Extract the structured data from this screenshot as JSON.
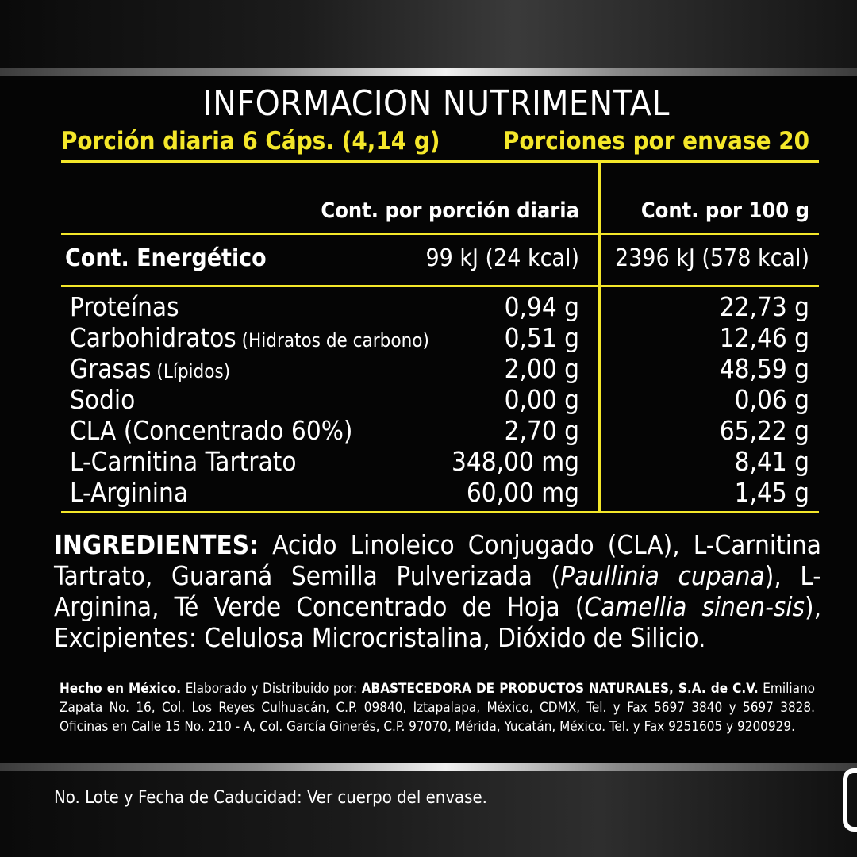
{
  "panel": {
    "title": "INFORMACION NUTRIMENTAL",
    "serving_size": "Porción diaria 6 Cáps. (4,14 g)",
    "servings_per_container": "Porciones por envase 20"
  },
  "table": {
    "header_per_serving": "Cont. por  porción diaria",
    "header_per_100g": "Cont. por 100 g",
    "energy": {
      "label": "Cont. Energético",
      "per_serving": "99 kJ (24 kcal)",
      "per_100g": "2396 kJ (578 kcal)"
    },
    "rows": [
      {
        "name": "Proteínas",
        "note": "",
        "per_serving": "0,94 g",
        "per_100g": "22,73 g"
      },
      {
        "name": "Carbohidratos",
        "note": " (Hidratos de carbono)",
        "per_serving": "0,51 g",
        "per_100g": "12,46 g"
      },
      {
        "name": "Grasas",
        "note": " (Lípidos)",
        "per_serving": "2,00 g",
        "per_100g": "48,59 g"
      },
      {
        "name": "Sodio",
        "note": "",
        "per_serving": "0,00 g",
        "per_100g": "0,06 g"
      },
      {
        "name": "CLA (Concentrado 60%)",
        "note": "",
        "per_serving": "2,70 g",
        "per_100g": "65,22 g"
      },
      {
        "name": "L-Carnitina Tartrato",
        "note": "",
        "per_serving": "348,00 mg",
        "per_100g": "8,41 g"
      },
      {
        "name": "L-Arginina",
        "note": "",
        "per_serving": "60,00 mg",
        "per_100g": "1,45 g"
      }
    ]
  },
  "ingredients": {
    "label": "INGREDIENTES:",
    "part1": " Acido Linoleico Conjugado (CLA), L-Carnitina Tartrato, Guaraná Semilla Pulverizada (",
    "sci1": "Paullinia cupana",
    "part2": "), L- Arginina, Té Verde Concentrado de Hoja (",
    "sci2": "Camellia sinen-sis",
    "part3": "), Excipientes: Celulosa Microcristalina, Dióxido de Silicio."
  },
  "manufacturer": {
    "made_in": "Hecho en México.",
    "distributed_by": " Elaborado y Distribuido por: ",
    "company": "ABASTECEDORA DE PRODUCTOS NATURALES, S.A. de C.V.",
    "address": " Emiliano Zapata No. 16, Col. Los Reyes Culhuacán, C.P. 09840, Iztapalapa, México, CDMX, Tel. y Fax  5697 3840 y 5697 3828. Oficinas en Calle 15 No. 210 - A, Col. García Ginerés, C.P. 97070, Mérida, Yucatán, México. Tel. y Fax  9251605 y 9200929."
  },
  "lot_note": "No. Lote y Fecha de Caducidad:  Ver cuerpo del envase.",
  "colors": {
    "background": "#050505",
    "accent_yellow": "#f4e72a",
    "text": "#ffffff"
  }
}
